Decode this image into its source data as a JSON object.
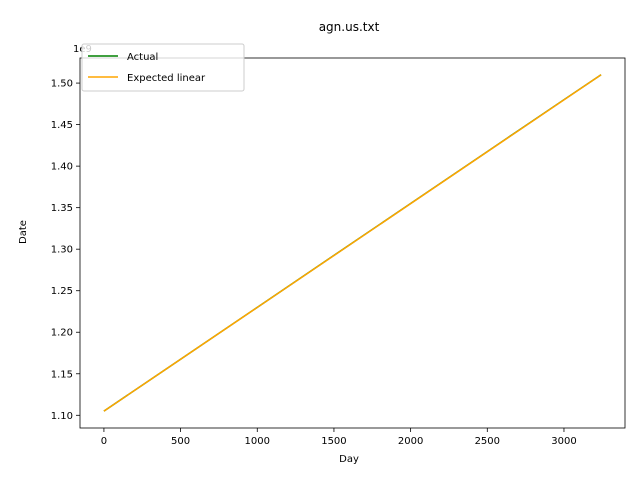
{
  "chart_data": {
    "type": "line",
    "title": "agn.us.txt",
    "xlabel": "Day",
    "ylabel": "Date",
    "y_offset_text": "1e9",
    "xlim": [
      -156,
      3398
    ],
    "ylim": [
      1084700000.0,
      1530200000.0
    ],
    "x_ticks": [
      0,
      500,
      1000,
      1500,
      2000,
      2500,
      3000
    ],
    "x_tick_labels": [
      "0",
      "500",
      "1000",
      "1500",
      "2000",
      "2500",
      "3000"
    ],
    "y_ticks": [
      1100000000.0,
      1150000000.0,
      1200000000.0,
      1250000000.0,
      1300000000.0,
      1350000000.0,
      1400000000.0,
      1450000000.0,
      1500000000.0
    ],
    "y_tick_labels": [
      "1.10",
      "1.15",
      "1.20",
      "1.25",
      "1.30",
      "1.35",
      "1.40",
      "1.45",
      "1.50"
    ],
    "legend_position": "upper-left",
    "series": [
      {
        "name": "Actual",
        "color": "#008000",
        "x": [
          0,
          500,
          1000,
          1500,
          2000,
          2500,
          3000,
          3242
        ],
        "y": [
          1105000000.0,
          1167500000.0,
          1230000000.0,
          1292500000.0,
          1355000000.0,
          1417500000.0,
          1480000000.0,
          1510000000.0
        ]
      },
      {
        "name": "Expected linear",
        "color": "#ffa500",
        "x": [
          0,
          3242
        ],
        "y": [
          1105000000.0,
          1510000000.0
        ]
      }
    ]
  }
}
